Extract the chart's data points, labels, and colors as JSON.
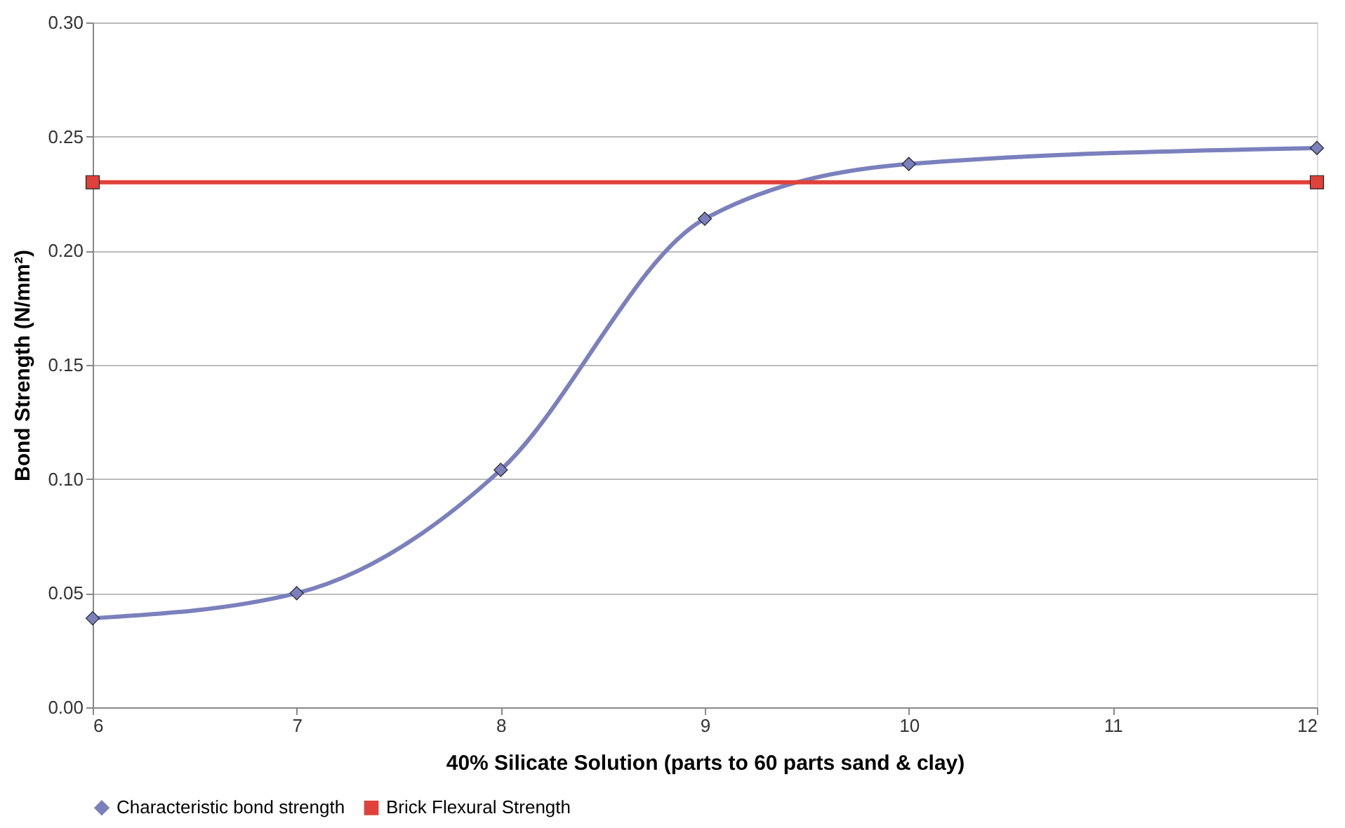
{
  "chart_data": {
    "type": "line",
    "xlabel": "40% Silicate Solution (parts to 60 parts sand & clay)",
    "ylabel": "Bond Strength (N/mm²)",
    "series": [
      {
        "name": "Characteristic bond strength",
        "color": "#7b80bd",
        "marker": "diamond",
        "x": [
          6,
          7,
          8,
          9,
          10,
          12
        ],
        "values": [
          0.039,
          0.05,
          0.104,
          0.214,
          0.238,
          0.245
        ]
      },
      {
        "name": "Brick Flexural Strength",
        "color": "#e0413b",
        "marker": "square",
        "x": [
          6,
          12
        ],
        "values": [
          0.23,
          0.23
        ]
      }
    ],
    "xlim": [
      6,
      12
    ],
    "xticks": [
      6,
      7,
      8,
      9,
      10,
      11,
      12
    ],
    "ylim": [
      0,
      0.3
    ],
    "yticks": [
      {
        "value": 0,
        "label": "0.00"
      },
      {
        "value": 0.05,
        "label": "0.05"
      },
      {
        "value": 0.1,
        "label": "0.10"
      },
      {
        "value": 0.15,
        "label": "0.15"
      },
      {
        "value": 0.2,
        "label": "0.20"
      },
      {
        "value": 0.25,
        "label": "0.25"
      },
      {
        "value": 0.3,
        "label": "0.30"
      }
    ],
    "grid": "y",
    "legend": "bottom",
    "line_style": "solid"
  }
}
